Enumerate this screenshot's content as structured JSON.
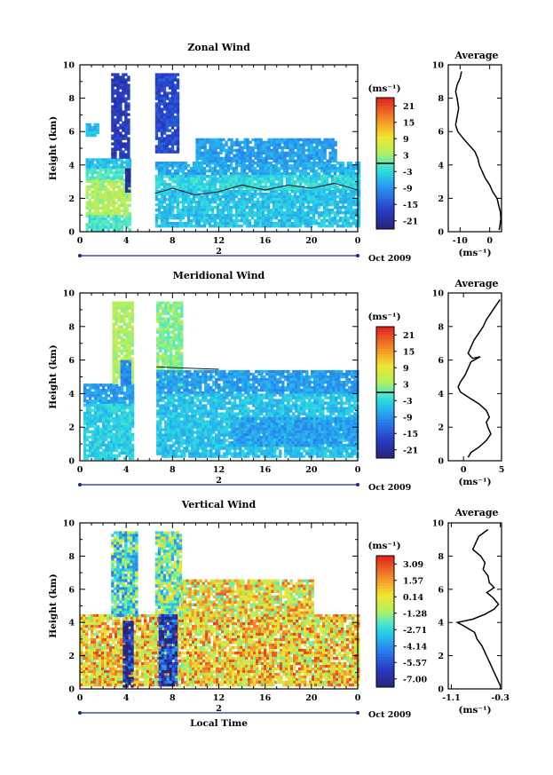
{
  "chart_data": [
    {
      "type": "heatmap",
      "title": "Zonal Wind",
      "xlabel": "",
      "ylabel": "Height (km)",
      "x_ticks": [
        "0",
        "4",
        "8",
        "12",
        "16",
        "20",
        "0"
      ],
      "x_range_hours": [
        0,
        24
      ],
      "y_ticks": [
        "0",
        "2",
        "4",
        "6",
        "8",
        "10"
      ],
      "ylim": [
        0,
        10
      ],
      "date_axis": {
        "day_label": "2",
        "month_label": "Oct 2009"
      },
      "colorbar": {
        "unit": "(ms⁻¹)",
        "ticks": [
          "21",
          "15",
          "9",
          "3",
          "-3",
          "-9",
          "-15",
          "-21"
        ],
        "vmin": -24,
        "vmax": 24,
        "marker": 0
      },
      "gaps_hours": [
        [
          0,
          0.5
        ],
        [
          4.3,
          6.5
        ]
      ],
      "regions": [
        {
          "x0": 0.5,
          "x1": 1.5,
          "y0": 5.8,
          "y1": 6.5,
          "value": -6
        },
        {
          "x0": 0.5,
          "x1": 4.3,
          "y0": 3.8,
          "y1": 4.4,
          "value": -5
        },
        {
          "x0": 0.5,
          "x1": 4.3,
          "y0": 3.1,
          "y1": 3.8,
          "value": -1
        },
        {
          "x0": 0.5,
          "x1": 4.3,
          "y0": 1.0,
          "y1": 3.1,
          "value": 4
        },
        {
          "x0": 0.5,
          "x1": 4.3,
          "y0": 0.2,
          "y1": 1.0,
          "value": -1
        },
        {
          "x0": 2.7,
          "x1": 4.3,
          "y0": 4.4,
          "y1": 9.5,
          "value": -18
        },
        {
          "x0": 3.9,
          "x1": 4.2,
          "y0": 2.4,
          "y1": 3.8,
          "value": -21
        },
        {
          "x0": 6.5,
          "x1": 8.5,
          "y0": 4.8,
          "y1": 9.5,
          "value": -16
        },
        {
          "x0": 6.5,
          "x1": 24,
          "y0": 3.4,
          "y1": 4.2,
          "value": -7
        },
        {
          "x0": 6.5,
          "x1": 24,
          "y0": 2.5,
          "y1": 3.4,
          "value": -3
        },
        {
          "x0": 6.5,
          "x1": 24,
          "y0": 0.4,
          "y1": 2.5,
          "value": -5
        },
        {
          "x0": 10,
          "x1": 22,
          "y0": 4.2,
          "y1": 5.6,
          "value": -8
        }
      ],
      "contour_height_km": [
        [
          6.5,
          2.3
        ],
        [
          8,
          2.6
        ],
        [
          10,
          2.2
        ],
        [
          12,
          2.4
        ],
        [
          14,
          2.8
        ],
        [
          16,
          2.5
        ],
        [
          18,
          2.8
        ],
        [
          20,
          2.6
        ],
        [
          22,
          2.9
        ],
        [
          24,
          2.5
        ]
      ]
    },
    {
      "type": "heatmap",
      "title": "Meridional Wind",
      "xlabel": "",
      "ylabel": "Height (km)",
      "x_ticks": [
        "0",
        "4",
        "8",
        "12",
        "16",
        "20",
        "0"
      ],
      "x_range_hours": [
        0,
        24
      ],
      "y_ticks": [
        "0",
        "2",
        "4",
        "6",
        "8",
        "10"
      ],
      "ylim": [
        0,
        10
      ],
      "date_axis": {
        "day_label": "2",
        "month_label": "Oct 2009"
      },
      "colorbar": {
        "unit": "(ms⁻¹)",
        "ticks": [
          "21",
          "15",
          "9",
          "3",
          "-3",
          "-9",
          "-15",
          "-21"
        ],
        "vmin": -24,
        "vmax": 24,
        "marker": 0
      },
      "gaps_hours": [
        [
          0,
          0.3
        ],
        [
          4.6,
          6.6
        ]
      ],
      "regions": [
        {
          "x0": 0.3,
          "x1": 4.6,
          "y0": 3.4,
          "y1": 4.6,
          "value": -8
        },
        {
          "x0": 0.3,
          "x1": 4.6,
          "y0": 0.2,
          "y1": 3.4,
          "value": -4
        },
        {
          "x0": 2.8,
          "x1": 4.6,
          "y0": 4.6,
          "y1": 9.5,
          "value": 4
        },
        {
          "x0": 3.5,
          "x1": 4.4,
          "y0": 4.6,
          "y1": 6.0,
          "value": -10
        },
        {
          "x0": 6.6,
          "x1": 8.8,
          "y0": 4.5,
          "y1": 9.5,
          "value": 2
        },
        {
          "x0": 6.6,
          "x1": 24,
          "y0": 4.0,
          "y1": 5.4,
          "value": -8
        },
        {
          "x0": 6.6,
          "x1": 24,
          "y0": 0.2,
          "y1": 4.0,
          "value": -5
        },
        {
          "x0": 13,
          "x1": 24,
          "y0": 1.0,
          "y1": 2.6,
          "value": -8
        }
      ],
      "contour_height_km": [
        [
          6.6,
          5.6
        ],
        [
          8,
          5.55
        ],
        [
          10,
          5.5
        ],
        [
          12,
          5.45
        ]
      ]
    },
    {
      "type": "heatmap",
      "title": "Vertical Wind",
      "xlabel": "Local Time",
      "ylabel": "Height (km)",
      "x_ticks": [
        "0",
        "4",
        "8",
        "12",
        "16",
        "20",
        "0"
      ],
      "x_range_hours": [
        0,
        24
      ],
      "y_ticks": [
        "0",
        "2",
        "4",
        "6",
        "8",
        "10"
      ],
      "ylim": [
        0,
        10
      ],
      "date_axis": {
        "day_label": "2",
        "month_label": "Oct 2009"
      },
      "colorbar": {
        "unit": "(ms⁻¹)",
        "ticks": [
          "3.09",
          "1.57",
          "0.14",
          "-1.28",
          "-2.71",
          "-4.14",
          "-5.57",
          "-7.00"
        ],
        "vmin": -7.7,
        "vmax": 3.8,
        "marker": null
      },
      "gaps_hours": [
        [
          0,
          0.0
        ],
        [
          4.8,
          6.5
        ]
      ],
      "regions": [
        {
          "x0": 0,
          "x1": 24,
          "y0": 0.2,
          "y1": 4.5,
          "value": 0.7
        },
        {
          "x0": 2.7,
          "x1": 4.8,
          "y0": 4.5,
          "y1": 9.5,
          "value": -2.4
        },
        {
          "x0": 3.7,
          "x1": 4.6,
          "y0": 0.2,
          "y1": 4.1,
          "value": -7
        },
        {
          "x0": 6.5,
          "x1": 8.7,
          "y0": 4.5,
          "y1": 9.5,
          "value": -1.6
        },
        {
          "x0": 6.8,
          "x1": 8.3,
          "y0": 0.2,
          "y1": 4.5,
          "value": -6
        },
        {
          "x0": 8.7,
          "x1": 20,
          "y0": 4.5,
          "y1": 6.6,
          "value": 0.3
        }
      ]
    }
  ],
  "averages": [
    {
      "title": "Average",
      "xlabel": "(ms⁻¹)",
      "xlim": [
        -14,
        4
      ],
      "x_ticks": [
        {
          "label": "-10",
          "value": -10
        },
        {
          "label": "0",
          "value": 0
        }
      ],
      "ylim": [
        0,
        10
      ],
      "y_ticks": [
        "0",
        "2",
        "4",
        "6",
        "8",
        "10"
      ],
      "profile": [
        [
          -9.5,
          9.6
        ],
        [
          -10,
          9.2
        ],
        [
          -11,
          8.8
        ],
        [
          -11.5,
          8.4
        ],
        [
          -11,
          8
        ],
        [
          -10.5,
          7.4
        ],
        [
          -11,
          6.9
        ],
        [
          -11.5,
          6.4
        ],
        [
          -10.8,
          6.0
        ],
        [
          -9,
          5.6
        ],
        [
          -7,
          5.2
        ],
        [
          -5,
          4.8
        ],
        [
          -4,
          4.4
        ],
        [
          -3.5,
          4.0
        ],
        [
          -2.5,
          3.6
        ],
        [
          -1.5,
          3.2
        ],
        [
          0,
          2.8
        ],
        [
          1,
          2.4
        ],
        [
          2.5,
          2.0
        ],
        [
          3,
          1.6
        ],
        [
          3.6,
          1.2
        ],
        [
          3.8,
          0.8
        ],
        [
          3.5,
          0.4
        ],
        [
          3.2,
          0.1
        ]
      ]
    },
    {
      "title": "Average",
      "xlabel": "(ms⁻¹)",
      "xlim": [
        -2,
        5
      ],
      "x_ticks": [
        {
          "label": "0",
          "value": 0
        },
        {
          "label": "5",
          "value": 5
        }
      ],
      "ylim": [
        0,
        10
      ],
      "y_ticks": [
        "0",
        "2",
        "4",
        "6",
        "8",
        "10"
      ],
      "profile": [
        [
          4.8,
          9.6
        ],
        [
          4.2,
          9.2
        ],
        [
          3.6,
          8.8
        ],
        [
          3.0,
          8.4
        ],
        [
          2.6,
          8.0
        ],
        [
          2.0,
          7.6
        ],
        [
          1.4,
          7.2
        ],
        [
          1.0,
          6.8
        ],
        [
          0.6,
          6.4
        ],
        [
          1.2,
          6.1
        ],
        [
          2.2,
          6.2
        ],
        [
          1.0,
          5.9
        ],
        [
          0.6,
          5.5
        ],
        [
          0.2,
          5.1
        ],
        [
          -0.4,
          4.7
        ],
        [
          -0.7,
          4.4
        ],
        [
          -0.4,
          4.1
        ],
        [
          0.6,
          3.8
        ],
        [
          2.0,
          3.4
        ],
        [
          3.0,
          3.0
        ],
        [
          3.4,
          2.6
        ],
        [
          3.0,
          2.3
        ],
        [
          3.2,
          2.0
        ],
        [
          3.6,
          1.6
        ],
        [
          3.0,
          1.2
        ],
        [
          2.0,
          0.8
        ],
        [
          1.0,
          0.5
        ],
        [
          0.6,
          0.2
        ]
      ]
    },
    {
      "title": "Average",
      "xlabel": "(ms⁻¹)",
      "xlim": [
        -1.15,
        -0.28
      ],
      "x_ticks": [
        {
          "label": "-1.1",
          "value": -1.1
        },
        {
          "label": "-0.3",
          "value": -0.3
        }
      ],
      "ylim": [
        0,
        10
      ],
      "y_ticks": [
        "0",
        "2",
        "4",
        "6",
        "8",
        "10"
      ],
      "profile": [
        [
          -0.5,
          9.6
        ],
        [
          -0.65,
          9.2
        ],
        [
          -0.7,
          8.8
        ],
        [
          -0.75,
          8.4
        ],
        [
          -0.62,
          8.0
        ],
        [
          -0.55,
          7.6
        ],
        [
          -0.58,
          7.2
        ],
        [
          -0.5,
          6.8
        ],
        [
          -0.48,
          6.4
        ],
        [
          -0.4,
          6.1
        ],
        [
          -0.52,
          5.8
        ],
        [
          -0.42,
          5.5
        ],
        [
          -0.33,
          5.1
        ],
        [
          -0.4,
          4.8
        ],
        [
          -0.55,
          4.5
        ],
        [
          -0.75,
          4.2
        ],
        [
          -1.0,
          4.0
        ],
        [
          -0.9,
          3.8
        ],
        [
          -0.72,
          3.4
        ],
        [
          -0.68,
          3.0
        ],
        [
          -0.6,
          2.6
        ],
        [
          -0.55,
          2.2
        ],
        [
          -0.5,
          1.8
        ],
        [
          -0.45,
          1.4
        ],
        [
          -0.4,
          1.0
        ],
        [
          -0.35,
          0.6
        ],
        [
          -0.3,
          0.2
        ]
      ]
    }
  ]
}
